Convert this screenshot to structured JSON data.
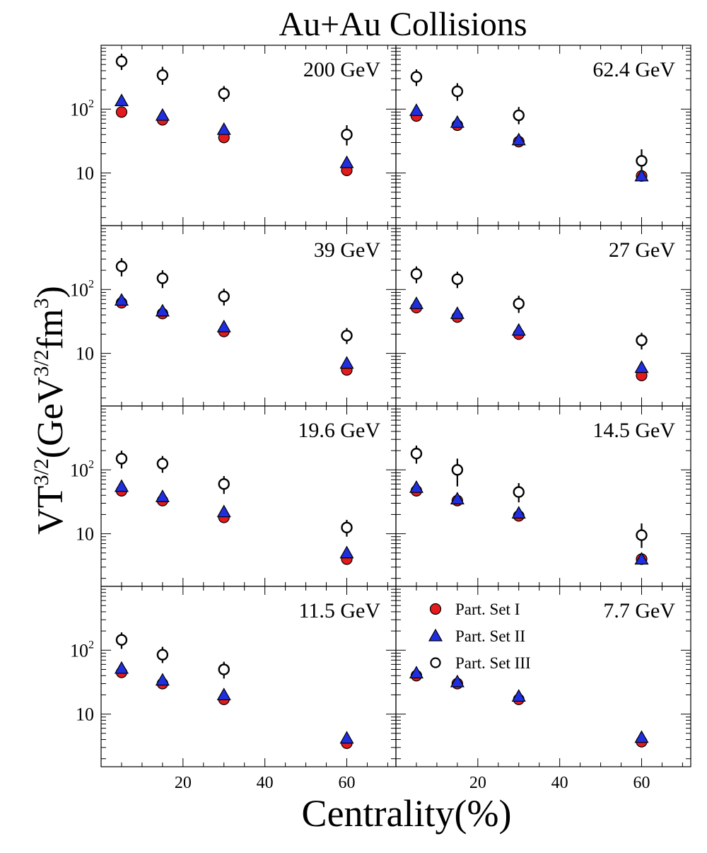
{
  "chart_data": {
    "type": "scatter",
    "title": "Au+Au Collisions",
    "xlabel": "Centrality(%)",
    "ylabel": "VT^{3/2}(GeV^{3/2}fm^{3})",
    "ylabel_parts": {
      "v": "VT",
      "sup1": "3/2",
      "open": "(GeV",
      "sup2": "3/2",
      "fm": "fm",
      "sup3": "3",
      "close": ")"
    },
    "xlim": [
      0,
      72
    ],
    "ylim": [
      1.5,
      1000
    ],
    "yscale": "log",
    "x_tick_labels": [
      "20",
      "40",
      "60"
    ],
    "x_ticks": [
      20,
      40,
      60
    ],
    "y_tick_labels": [
      {
        "base": "10",
        "exp": "",
        "value": 10
      },
      {
        "base": "10",
        "exp": "2",
        "value": 100
      }
    ],
    "legend": {
      "placement": "panel 7.7 GeV, upper-left",
      "entries": [
        "Part. Set I",
        "Part. Set II",
        "Part. Set III"
      ]
    },
    "series_styles": [
      {
        "name": "Part. Set I",
        "marker": "circle",
        "fill": "#e41a1c"
      },
      {
        "name": "Part. Set II",
        "marker": "triangle",
        "fill": "#1f2fe0"
      },
      {
        "name": "Part. Set III",
        "marker": "open-circle",
        "fill": "#ffffff"
      }
    ],
    "x": [
      5,
      15,
      30,
      60
    ],
    "panels": [
      {
        "label": "200 GeV",
        "set1": [
          90,
          68,
          36,
          11
        ],
        "set2": [
          135,
          80,
          48,
          14.5
        ],
        "set3": {
          "values": [
            560,
            340,
            175,
            40
          ],
          "err_lo": [
            150,
            100,
            45,
            13
          ],
          "err_hi": [
            180,
            120,
            55,
            16
          ]
        }
      },
      {
        "label": "62.4 GeV",
        "set1": [
          78,
          56,
          31,
          9
        ],
        "set2": [
          95,
          62,
          33,
          9
        ],
        "set3": {
          "values": [
            320,
            190,
            80,
            15.5
          ],
          "err_lo": [
            90,
            55,
            22,
            5.5
          ],
          "err_hi": [
            100,
            65,
            28,
            8
          ]
        }
      },
      {
        "label": "39 GeV",
        "set1": [
          62,
          42,
          22,
          5.5
        ],
        "set2": [
          68,
          46,
          26,
          7
        ],
        "set3": {
          "values": [
            230,
            150,
            78,
            19
          ],
          "err_lo": [
            70,
            45,
            22,
            5
          ],
          "err_hi": [
            80,
            50,
            25,
            6
          ]
        }
      },
      {
        "label": "27 GeV",
        "set1": [
          52,
          37,
          20,
          4.5
        ],
        "set2": [
          60,
          42,
          23,
          6
        ],
        "set3": {
          "values": [
            175,
            145,
            60,
            16
          ],
          "err_lo": [
            50,
            40,
            17,
            4.5
          ],
          "err_hi": [
            55,
            45,
            20,
            5
          ]
        }
      },
      {
        "label": "19.6 GeV",
        "set1": [
          47,
          33,
          18,
          4
        ],
        "set2": [
          55,
          38,
          22,
          5
        ],
        "set3": {
          "values": [
            150,
            125,
            60,
            12.5
          ],
          "err_lo": [
            45,
            35,
            18,
            3.5
          ],
          "err_hi": [
            50,
            40,
            20,
            4
          ]
        }
      },
      {
        "label": "14.5 GeV",
        "set1": [
          47,
          33,
          19,
          4
        ],
        "set2": [
          53,
          35,
          21,
          4
        ],
        "set3": {
          "values": [
            180,
            100,
            45,
            9.5
          ],
          "err_lo": [
            55,
            45,
            14,
            3.5
          ],
          "err_hi": [
            60,
            50,
            17,
            5
          ]
        }
      },
      {
        "label": "11.5 GeV",
        "set1": [
          45,
          30,
          17,
          3.5
        ],
        "set2": [
          52,
          34,
          20,
          4.2
        ],
        "set3": {
          "values": [
            145,
            85,
            50,
            null
          ],
          "err_lo": [
            40,
            22,
            14,
            0
          ],
          "err_hi": [
            45,
            28,
            16,
            0
          ]
        }
      },
      {
        "label": "7.7 GeV",
        "set1": [
          40,
          30,
          17,
          3.7
        ],
        "set2": [
          44,
          32,
          19,
          4.3
        ],
        "set3": {
          "values": [
            null,
            null,
            null,
            null
          ],
          "err_lo": [
            0,
            0,
            0,
            0
          ],
          "err_hi": [
            0,
            0,
            0,
            0
          ]
        }
      }
    ]
  }
}
